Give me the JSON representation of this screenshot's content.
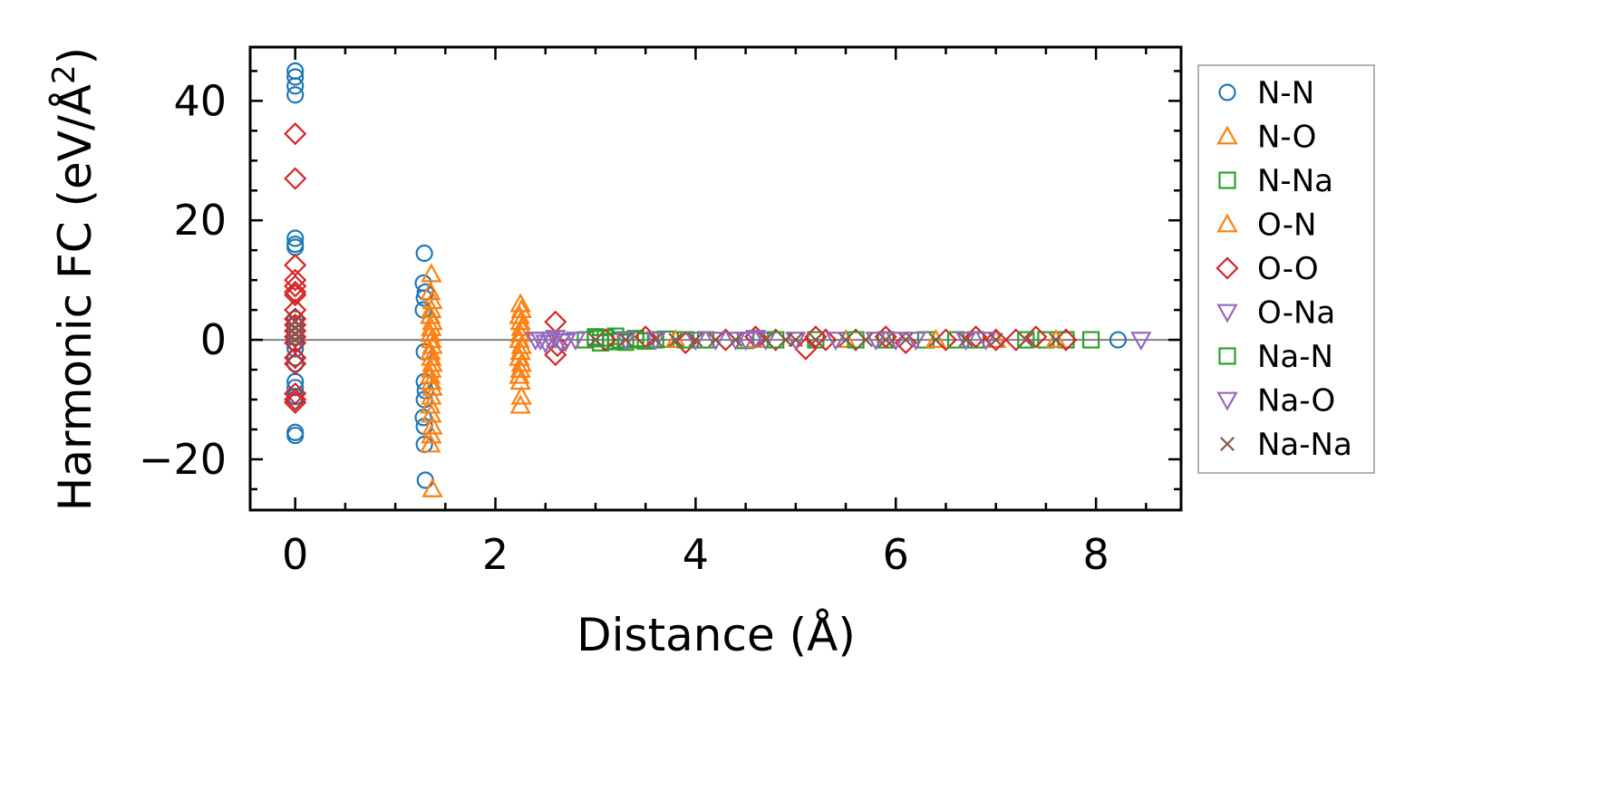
{
  "chart_data": {
    "type": "scatter",
    "xlabel": "Distance (Å)",
    "ylabel_main": "Harmonic FC (eV/Å",
    "ylabel_sup": "2",
    "ylabel_close": ")",
    "xlim": [
      -0.45,
      8.85
    ],
    "ylim": [
      -28.5,
      49
    ],
    "xticks": [
      0,
      2,
      4,
      6,
      8
    ],
    "xtick_labels": [
      "0",
      "2",
      "4",
      "6",
      "8"
    ],
    "yticks": [
      -20,
      0,
      20,
      40
    ],
    "ytick_labels": [
      "−20",
      "0",
      "20",
      "40"
    ],
    "x_minor_step": 0.5,
    "y_minor_step": 5,
    "zero_line": 0,
    "legend_position": "outside-right",
    "series": [
      {
        "name": "N-N",
        "label": "N-N",
        "marker": "circle",
        "color": "#1f77b4",
        "x": [
          0,
          0,
          0,
          0,
          0,
          0,
          0,
          0,
          0,
          0,
          0,
          0,
          0,
          0,
          0,
          0,
          0,
          0,
          0,
          0,
          1.29,
          1.28,
          1.3,
          1.29,
          1.28,
          1.29,
          1.3,
          1.29,
          1.28,
          1.29,
          1.29,
          1.3,
          1.29,
          8.22
        ],
        "y": [
          45,
          44,
          42.5,
          41,
          17,
          16,
          15.5,
          3.5,
          2.5,
          1.5,
          0.5,
          -0.5,
          -1.5,
          -3,
          -4,
          -7,
          -8,
          -9.5,
          -15.5,
          -16,
          14.5,
          9.5,
          8,
          7,
          5,
          -7,
          -8.5,
          -10,
          -13,
          -14.5,
          -17.5,
          -23.5,
          -2,
          0
        ]
      },
      {
        "name": "N-O",
        "label": "N-O",
        "marker": "triangle-up",
        "color": "#ff7f0e",
        "x": [
          1.36,
          1.35,
          1.37,
          1.36,
          1.35,
          1.37,
          1.36,
          1.35,
          1.36,
          1.37,
          1.35,
          1.36,
          1.37,
          1.36,
          1.35,
          1.36,
          1.37,
          1.36,
          1.35,
          1.36,
          1.37,
          1.36,
          1.35,
          1.37
        ],
        "y": [
          11,
          8,
          6.5,
          5,
          4,
          3,
          2,
          1,
          0,
          -1,
          -2,
          -3,
          -4,
          -5,
          -6,
          -7,
          -8,
          -9.5,
          -11,
          -12.5,
          -14.5,
          -16,
          -17.5,
          -25
        ]
      },
      {
        "name": "N-Na",
        "label": "N-Na",
        "marker": "square",
        "color": "#2ca02c",
        "x": [
          2.9,
          3.0,
          3.05,
          3.1,
          3.15,
          3.2,
          3.25,
          3.3,
          3.4,
          3.5,
          3.6,
          3.7,
          4.1,
          4.5,
          5.2,
          5.9,
          6.3,
          6.8,
          7.5,
          7.7,
          7.95
        ],
        "y": [
          0,
          0.5,
          -0.5,
          0.3,
          -0.3,
          0.6,
          0,
          -0.4,
          0.2,
          -0.2,
          0,
          0.1,
          0,
          -0.1,
          0,
          0,
          0,
          0,
          0,
          0,
          0
        ]
      },
      {
        "name": "O-N",
        "label": "O-N",
        "marker": "triangle-up",
        "color": "#ff7f0e",
        "x": [
          2.25,
          2.26,
          2.24,
          2.25,
          2.26,
          2.25,
          2.24,
          2.26,
          2.25,
          2.24,
          2.26,
          2.25,
          2.24,
          2.25,
          2.26,
          2.25,
          3.8,
          4.6,
          5.5,
          6.4,
          7.0,
          7.6
        ],
        "y": [
          6,
          5,
          4,
          3,
          2,
          1,
          0,
          -1,
          -2,
          -3,
          -4,
          -5,
          -6,
          -7,
          -9.5,
          -11,
          0,
          0,
          0,
          0,
          0,
          0
        ]
      },
      {
        "name": "O-O",
        "label": "O-O",
        "marker": "diamond",
        "color": "#d62728",
        "x": [
          0,
          0,
          0,
          0,
          0,
          0,
          0,
          0,
          0,
          0,
          0,
          0,
          0,
          0,
          0,
          0,
          0,
          0,
          2.6,
          2.6,
          2.62,
          3.1,
          3.5,
          3.9,
          4.3,
          4.6,
          4.8,
          5.1,
          5.2,
          5.3,
          5.6,
          5.9,
          6.1,
          6.5,
          6.8,
          7.0,
          7.2,
          7.4,
          7.7
        ],
        "y": [
          34.5,
          27,
          12.5,
          10,
          9,
          8,
          7.5,
          5,
          3.5,
          2.5,
          1.5,
          0.5,
          -0.5,
          -3,
          -4,
          -9,
          -10,
          -10.5,
          3,
          -2.5,
          -1,
          0,
          0.5,
          -0.5,
          0,
          0.5,
          0,
          -1.5,
          0.5,
          0,
          0,
          0.5,
          -0.5,
          0,
          0.5,
          0,
          0,
          0.5,
          0
        ]
      },
      {
        "name": "O-Na",
        "label": "O-Na",
        "marker": "triangle-down",
        "color": "#9467bd",
        "x": [
          2.4,
          2.5,
          2.55,
          2.6,
          2.7,
          2.8,
          3.6,
          4.0,
          4.4,
          4.6,
          4.7,
          5.4,
          5.8,
          6.2,
          6.9
        ],
        "y": [
          0,
          -0.5,
          0,
          0.3,
          -0.3,
          0,
          0,
          0,
          0,
          0.3,
          0,
          0,
          0,
          0,
          0
        ]
      },
      {
        "name": "Na-N",
        "label": "Na-N",
        "marker": "square",
        "color": "#2ca02c",
        "x": [
          3.0,
          3.2,
          3.4,
          3.9,
          4.8,
          5.6,
          6.6,
          7.3
        ],
        "y": [
          0.2,
          -0.2,
          0,
          0,
          0,
          0,
          0,
          0
        ]
      },
      {
        "name": "Na-O",
        "label": "Na-O",
        "marker": "triangle-down",
        "color": "#9467bd",
        "x": [
          2.45,
          2.65,
          3.3,
          4.2,
          4.5,
          5.0,
          6.0,
          6.7,
          8.45
        ],
        "y": [
          0,
          -0.3,
          0,
          0,
          0,
          0,
          0,
          0,
          0
        ]
      },
      {
        "name": "Na-Na",
        "label": "Na-Na",
        "marker": "x",
        "color": "#8c564b",
        "x": [
          0,
          0,
          0,
          0,
          3.0,
          3.3,
          3.6,
          3.8,
          4.0,
          4.2,
          4.4,
          4.7,
          4.9,
          5.0,
          5.2,
          5.5,
          5.7,
          5.9,
          6.1,
          6.4,
          6.7,
          7.0,
          7.3,
          7.6
        ],
        "y": [
          3,
          2,
          1,
          0,
          0,
          0,
          0,
          0,
          0,
          0,
          0,
          0,
          0,
          0,
          0,
          0,
          0,
          0,
          0,
          0,
          0,
          0,
          0,
          0
        ]
      }
    ]
  }
}
